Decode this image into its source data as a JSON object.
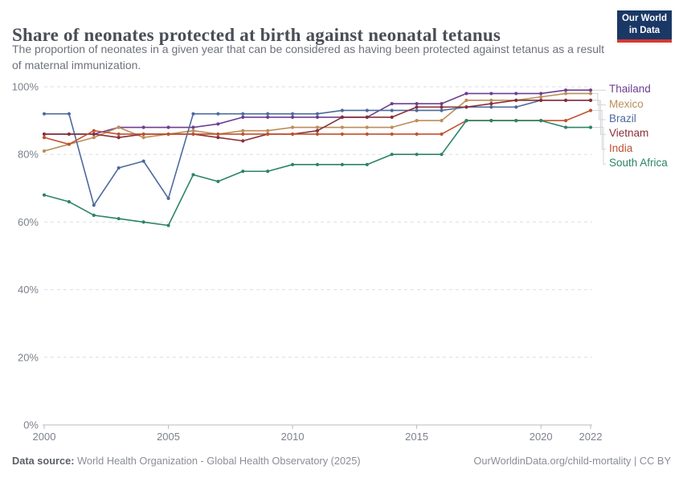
{
  "header": {
    "title": "Share of neonates protected at birth against neonatal tetanus",
    "subtitle": "The proportion of neonates in a given year that can be considered as having been protected against tetanus as a result of maternal immunization.",
    "logo": {
      "line1": "Our World",
      "line2": "in Data"
    }
  },
  "brand": {
    "logo_bg": "#1a3866",
    "logo_stripe": "#d63931"
  },
  "footer": {
    "source_label": "Data source:",
    "source_text": " World Health Organization - Global Health Observatory (2025)",
    "credit": "OurWorldinData.org/child-mortality | CC BY"
  },
  "chart_data": {
    "type": "line",
    "title": "Share of neonates protected at birth against neonatal tetanus",
    "xlabel": "",
    "ylabel": "",
    "x": [
      2000,
      2001,
      2002,
      2003,
      2004,
      2005,
      2006,
      2007,
      2008,
      2009,
      2010,
      2011,
      2012,
      2013,
      2014,
      2015,
      2016,
      2017,
      2018,
      2019,
      2020,
      2021,
      2022
    ],
    "xticks": [
      2000,
      2005,
      2010,
      2015,
      2020,
      2022
    ],
    "yticks": [
      0,
      20,
      40,
      60,
      80,
      100
    ],
    "ylim": [
      0,
      100
    ],
    "xlim": [
      2000,
      2022
    ],
    "grid": "horizontal-dashed",
    "legend_position": "right",
    "ytick_suffix": "%",
    "series": [
      {
        "name": "Thailand",
        "color": "#6D3E91",
        "values": [
          86,
          86,
          86,
          88,
          88,
          88,
          88,
          89,
          91,
          91,
          91,
          91,
          91,
          91,
          95,
          95,
          95,
          98,
          98,
          98,
          98,
          99,
          99
        ]
      },
      {
        "name": "Mexico",
        "color": "#BC8E5A",
        "values": [
          81,
          83,
          85,
          88,
          85,
          86,
          87,
          86,
          87,
          87,
          88,
          88,
          88,
          88,
          88,
          90,
          90,
          96,
          96,
          96,
          97,
          98,
          98
        ]
      },
      {
        "name": "Brazil",
        "color": "#4C6A9C",
        "values": [
          92,
          92,
          65,
          76,
          78,
          67,
          92,
          92,
          92,
          92,
          92,
          92,
          93,
          93,
          93,
          93,
          93,
          94,
          94,
          94,
          96,
          96,
          96
        ]
      },
      {
        "name": "Vietnam",
        "color": "#883039",
        "values": [
          86,
          86,
          86,
          85,
          86,
          86,
          86,
          85,
          84,
          86,
          86,
          87,
          91,
          91,
          91,
          94,
          94,
          94,
          95,
          96,
          96,
          96,
          96
        ]
      },
      {
        "name": "India",
        "color": "#C0512F",
        "values": [
          85,
          83,
          87,
          86,
          86,
          86,
          86,
          86,
          86,
          86,
          86,
          86,
          86,
          86,
          86,
          86,
          86,
          90,
          90,
          90,
          90,
          90,
          93
        ]
      },
      {
        "name": "South Africa",
        "color": "#2C8465",
        "values": [
          68,
          66,
          62,
          61,
          60,
          59,
          74,
          72,
          75,
          75,
          77,
          77,
          77,
          77,
          80,
          80,
          80,
          90,
          90,
          90,
          90,
          88,
          88
        ]
      }
    ]
  }
}
